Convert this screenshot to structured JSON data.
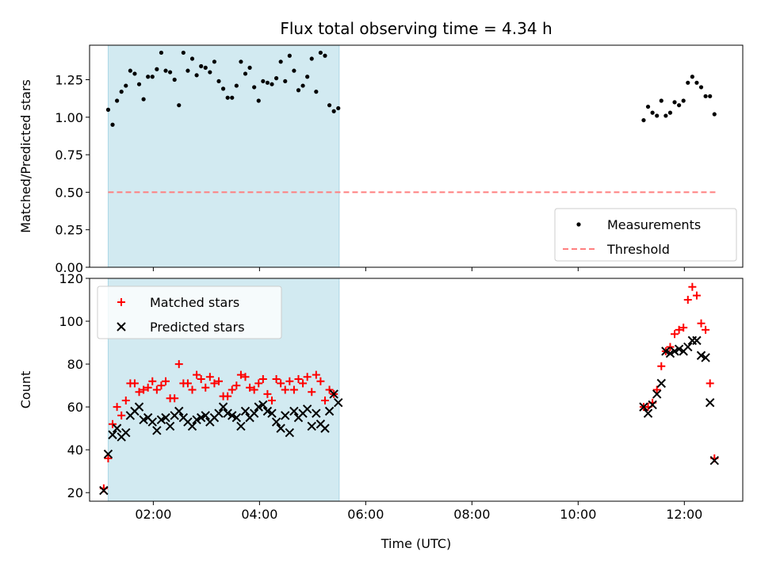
{
  "title": "Flux total observing time = 4.34 h",
  "colors": {
    "measurement": "#000000",
    "threshold": "#ff7f7f",
    "matched": "#ff0000",
    "predicted": "#000000",
    "highlight": "#add8e6"
  },
  "chart_data": [
    {
      "type": "scatter",
      "ylabel": "Matched/Predicted stars",
      "xlabel": "",
      "xlim": [
        "00:48",
        "13:06"
      ],
      "ylim": [
        0,
        1.48
      ],
      "x_ticks": [
        "02:00",
        "04:00",
        "06:00",
        "08:00",
        "10:00",
        "12:00"
      ],
      "y_ticks": [
        "0.00",
        "0.25",
        "0.50",
        "0.75",
        "1.00",
        "1.25"
      ],
      "highlight_span": [
        "01:09",
        "05:30"
      ],
      "legend": {
        "position": "lower-right",
        "entries": [
          "Measurements",
          "Threshold"
        ]
      },
      "threshold": {
        "name": "Threshold",
        "y": 0.5,
        "x": [
          "01:09",
          "12:36"
        ]
      },
      "series": [
        {
          "name": "Measurements",
          "marker": "dot",
          "points": [
            [
              "01:09",
              1.05
            ],
            [
              "01:14",
              0.95
            ],
            [
              "01:19",
              1.11
            ],
            [
              "01:24",
              1.17
            ],
            [
              "01:29",
              1.21
            ],
            [
              "01:34",
              1.31
            ],
            [
              "01:39",
              1.29
            ],
            [
              "01:44",
              1.22
            ],
            [
              "01:49",
              1.12
            ],
            [
              "01:54",
              1.27
            ],
            [
              "01:59",
              1.27
            ],
            [
              "02:04",
              1.32
            ],
            [
              "02:09",
              1.43
            ],
            [
              "02:14",
              1.31
            ],
            [
              "02:19",
              1.3
            ],
            [
              "02:24",
              1.25
            ],
            [
              "02:29",
              1.08
            ],
            [
              "02:34",
              1.43
            ],
            [
              "02:39",
              1.31
            ],
            [
              "02:44",
              1.39
            ],
            [
              "02:49",
              1.28
            ],
            [
              "02:54",
              1.34
            ],
            [
              "02:59",
              1.33
            ],
            [
              "03:04",
              1.3
            ],
            [
              "03:09",
              1.37
            ],
            [
              "03:14",
              1.24
            ],
            [
              "03:19",
              1.19
            ],
            [
              "03:24",
              1.13
            ],
            [
              "03:29",
              1.13
            ],
            [
              "03:34",
              1.21
            ],
            [
              "03:39",
              1.37
            ],
            [
              "03:44",
              1.29
            ],
            [
              "03:49",
              1.33
            ],
            [
              "03:54",
              1.2
            ],
            [
              "03:59",
              1.11
            ],
            [
              "04:04",
              1.24
            ],
            [
              "04:09",
              1.23
            ],
            [
              "04:14",
              1.22
            ],
            [
              "04:19",
              1.26
            ],
            [
              "04:24",
              1.37
            ],
            [
              "04:29",
              1.24
            ],
            [
              "04:34",
              1.41
            ],
            [
              "04:39",
              1.31
            ],
            [
              "04:44",
              1.18
            ],
            [
              "04:49",
              1.21
            ],
            [
              "04:54",
              1.27
            ],
            [
              "04:59",
              1.39
            ],
            [
              "05:04",
              1.17
            ],
            [
              "05:09",
              1.43
            ],
            [
              "05:14",
              1.41
            ],
            [
              "05:19",
              1.08
            ],
            [
              "05:24",
              1.04
            ],
            [
              "05:29",
              1.06
            ],
            [
              "11:14",
              0.98
            ],
            [
              "11:19",
              1.07
            ],
            [
              "11:24",
              1.03
            ],
            [
              "11:29",
              1.01
            ],
            [
              "11:34",
              1.11
            ],
            [
              "11:39",
              1.01
            ],
            [
              "11:44",
              1.03
            ],
            [
              "11:49",
              1.1
            ],
            [
              "11:54",
              1.08
            ],
            [
              "11:59",
              1.11
            ],
            [
              "12:04",
              1.23
            ],
            [
              "12:09",
              1.27
            ],
            [
              "12:14",
              1.23
            ],
            [
              "12:19",
              1.2
            ],
            [
              "12:24",
              1.14
            ],
            [
              "12:29",
              1.14
            ],
            [
              "12:34",
              1.02
            ]
          ]
        }
      ]
    },
    {
      "type": "scatter",
      "ylabel": "Count",
      "xlabel": "Time (UTC)",
      "xlim": [
        "00:48",
        "13:06"
      ],
      "ylim": [
        16,
        120
      ],
      "x_ticks": [
        "02:00",
        "04:00",
        "06:00",
        "08:00",
        "10:00",
        "12:00"
      ],
      "y_ticks": [
        "20",
        "40",
        "60",
        "80",
        "100",
        "120"
      ],
      "highlight_span": [
        "01:09",
        "05:30"
      ],
      "legend": {
        "position": "upper-left",
        "entries": [
          "Matched stars",
          "Predicted stars"
        ]
      },
      "series": [
        {
          "name": "Matched stars",
          "marker": "plus",
          "points": [
            [
              "01:04",
              22
            ],
            [
              "01:09",
              36
            ],
            [
              "01:14",
              52
            ],
            [
              "01:19",
              60
            ],
            [
              "01:24",
              56
            ],
            [
              "01:29",
              63
            ],
            [
              "01:34",
              71
            ],
            [
              "01:39",
              71
            ],
            [
              "01:44",
              67
            ],
            [
              "01:49",
              68
            ],
            [
              "01:54",
              69
            ],
            [
              "01:59",
              72
            ],
            [
              "02:04",
              68
            ],
            [
              "02:09",
              70
            ],
            [
              "02:14",
              72
            ],
            [
              "02:19",
              64
            ],
            [
              "02:24",
              64
            ],
            [
              "02:29",
              80
            ],
            [
              "02:34",
              71
            ],
            [
              "02:39",
              71
            ],
            [
              "02:44",
              68
            ],
            [
              "02:49",
              75
            ],
            [
              "02:54",
              73
            ],
            [
              "02:59",
              69
            ],
            [
              "03:04",
              74
            ],
            [
              "03:09",
              71
            ],
            [
              "03:14",
              72
            ],
            [
              "03:19",
              65
            ],
            [
              "03:24",
              65
            ],
            [
              "03:29",
              68
            ],
            [
              "03:34",
              70
            ],
            [
              "03:39",
              75
            ],
            [
              "03:44",
              74
            ],
            [
              "03:49",
              69
            ],
            [
              "03:54",
              68
            ],
            [
              "03:59",
              71
            ],
            [
              "04:04",
              73
            ],
            [
              "04:09",
              66
            ],
            [
              "04:14",
              63
            ],
            [
              "04:19",
              73
            ],
            [
              "04:24",
              71
            ],
            [
              "04:29",
              68
            ],
            [
              "04:34",
              72
            ],
            [
              "04:39",
              68
            ],
            [
              "04:44",
              73
            ],
            [
              "04:49",
              71
            ],
            [
              "04:54",
              74
            ],
            [
              "04:59",
              67
            ],
            [
              "05:04",
              75
            ],
            [
              "05:09",
              72
            ],
            [
              "05:14",
              63
            ],
            [
              "05:19",
              68
            ],
            [
              "05:24",
              66
            ],
            [
              "11:14",
              60
            ],
            [
              "11:19",
              60
            ],
            [
              "11:24",
              62
            ],
            [
              "11:29",
              68
            ],
            [
              "11:34",
              79
            ],
            [
              "11:39",
              86
            ],
            [
              "11:44",
              88
            ],
            [
              "11:49",
              94
            ],
            [
              "11:54",
              96
            ],
            [
              "11:59",
              97
            ],
            [
              "12:04",
              110
            ],
            [
              "12:09",
              116
            ],
            [
              "12:14",
              112
            ],
            [
              "12:19",
              99
            ],
            [
              "12:24",
              96
            ],
            [
              "12:29",
              71
            ],
            [
              "12:34",
              36
            ]
          ]
        },
        {
          "name": "Predicted stars",
          "marker": "x",
          "points": [
            [
              "01:04",
              21
            ],
            [
              "01:09",
              38
            ],
            [
              "01:14",
              47
            ],
            [
              "01:19",
              50
            ],
            [
              "01:24",
              46
            ],
            [
              "01:29",
              48
            ],
            [
              "01:34",
              56
            ],
            [
              "01:39",
              58
            ],
            [
              "01:44",
              60
            ],
            [
              "01:49",
              54
            ],
            [
              "01:54",
              55
            ],
            [
              "01:59",
              53
            ],
            [
              "02:04",
              49
            ],
            [
              "02:09",
              54
            ],
            [
              "02:14",
              55
            ],
            [
              "02:19",
              51
            ],
            [
              "02:24",
              56
            ],
            [
              "02:29",
              58
            ],
            [
              "02:34",
              55
            ],
            [
              "02:39",
              53
            ],
            [
              "02:44",
              51
            ],
            [
              "02:49",
              54
            ],
            [
              "02:54",
              55
            ],
            [
              "02:59",
              56
            ],
            [
              "03:04",
              53
            ],
            [
              "03:09",
              55
            ],
            [
              "03:14",
              57
            ],
            [
              "03:19",
              60
            ],
            [
              "03:24",
              57
            ],
            [
              "03:29",
              56
            ],
            [
              "03:34",
              55
            ],
            [
              "03:39",
              51
            ],
            [
              "03:44",
              58
            ],
            [
              "03:49",
              55
            ],
            [
              "03:54",
              57
            ],
            [
              "03:59",
              60
            ],
            [
              "04:04",
              61
            ],
            [
              "04:09",
              58
            ],
            [
              "04:14",
              57
            ],
            [
              "04:19",
              53
            ],
            [
              "04:24",
              50
            ],
            [
              "04:29",
              56
            ],
            [
              "04:34",
              48
            ],
            [
              "04:39",
              58
            ],
            [
              "04:44",
              55
            ],
            [
              "04:49",
              57
            ],
            [
              "04:54",
              59
            ],
            [
              "04:59",
              51
            ],
            [
              "05:04",
              57
            ],
            [
              "05:09",
              52
            ],
            [
              "05:14",
              50
            ],
            [
              "05:19",
              58
            ],
            [
              "05:24",
              66
            ],
            [
              "05:29",
              62
            ],
            [
              "11:14",
              60
            ],
            [
              "11:19",
              57
            ],
            [
              "11:24",
              61
            ],
            [
              "11:29",
              66
            ],
            [
              "11:34",
              71
            ],
            [
              "11:39",
              86
            ],
            [
              "11:44",
              85
            ],
            [
              "11:49",
              86
            ],
            [
              "11:54",
              87
            ],
            [
              "11:59",
              86
            ],
            [
              "12:04",
              88
            ],
            [
              "12:09",
              91
            ],
            [
              "12:14",
              91
            ],
            [
              "12:19",
              84
            ],
            [
              "12:24",
              83
            ],
            [
              "12:29",
              62
            ],
            [
              "12:34",
              35
            ]
          ]
        }
      ]
    }
  ]
}
